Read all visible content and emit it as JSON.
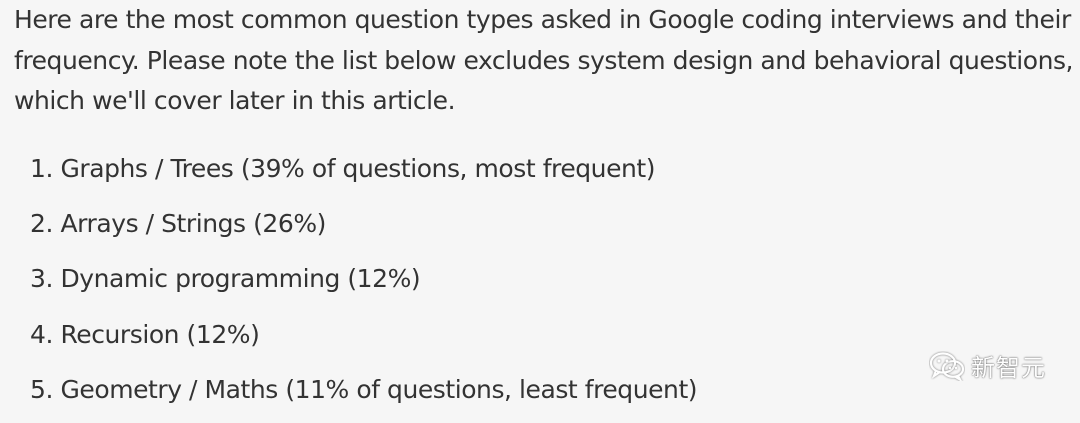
{
  "article": {
    "intro": "Here are the most common question types asked in Google coding interviews and their frequency. Please note the list below excludes system design and behavioral questions, which we'll cover later in this article.",
    "items": [
      {
        "num": "1.",
        "text": "Graphs / Trees (39% of questions, most frequent)"
      },
      {
        "num": "2.",
        "text": "Arrays / Strings (26%)"
      },
      {
        "num": "3.",
        "text": "Dynamic programming (12%)"
      },
      {
        "num": "4.",
        "text": "Recursion (12%)"
      },
      {
        "num": "5.",
        "text": "Geometry / Maths (11% of questions, least frequent)"
      }
    ]
  },
  "watermark": {
    "text": "新智元",
    "icon": "wechat-icon"
  },
  "colors": {
    "background": "#f6f6f6",
    "text": "#333333"
  }
}
